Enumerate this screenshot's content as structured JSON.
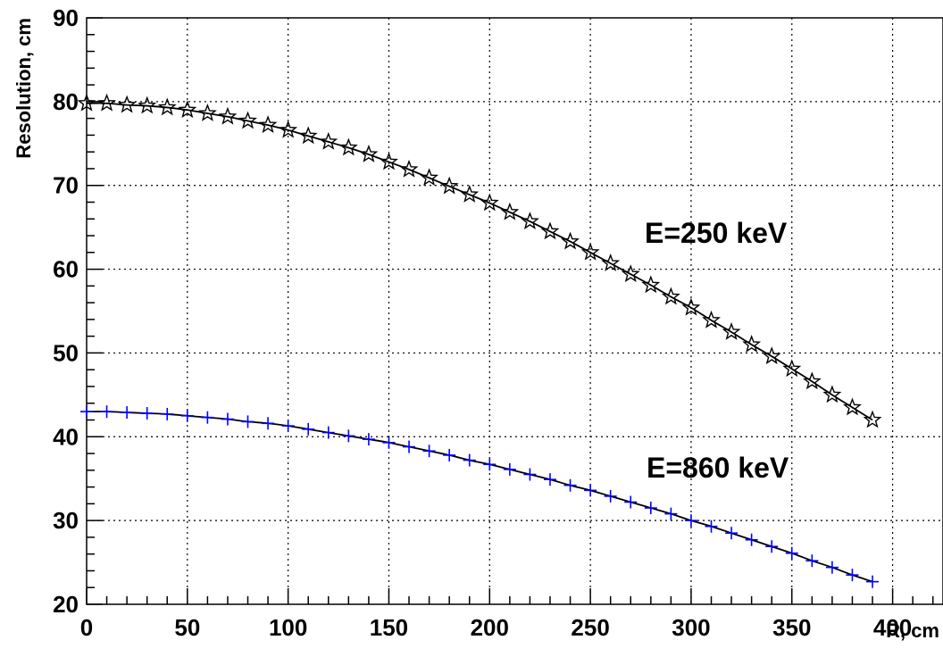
{
  "chart_data": {
    "type": "line",
    "xlabel": "R, cm",
    "ylabel": "Resolution, cm",
    "xlim": [
      0,
      425
    ],
    "ylim": [
      20,
      90
    ],
    "xticks": [
      0,
      50,
      100,
      150,
      200,
      250,
      300,
      350,
      400
    ],
    "yticks": [
      20,
      30,
      40,
      50,
      60,
      70,
      80,
      90
    ],
    "grid": true,
    "series": [
      {
        "name": "E=250 keV",
        "marker": "star",
        "color": "#000000",
        "x": [
          0,
          10,
          20,
          30,
          40,
          50,
          60,
          70,
          80,
          90,
          100,
          110,
          120,
          130,
          140,
          150,
          160,
          170,
          180,
          190,
          200,
          210,
          220,
          230,
          240,
          250,
          260,
          270,
          280,
          290,
          300,
          310,
          320,
          330,
          340,
          350,
          360,
          370,
          380,
          390
        ],
        "y": [
          79.8,
          79.8,
          79.6,
          79.5,
          79.3,
          79.0,
          78.6,
          78.2,
          77.7,
          77.2,
          76.6,
          75.9,
          75.2,
          74.5,
          73.7,
          72.8,
          71.9,
          70.9,
          69.9,
          68.9,
          67.9,
          66.8,
          65.7,
          64.5,
          63.3,
          62.0,
          60.7,
          59.4,
          58.1,
          56.7,
          55.4,
          53.9,
          52.5,
          51.0,
          49.6,
          48.1,
          46.6,
          45.0,
          43.5,
          42.0
        ]
      },
      {
        "name": "E=860 keV",
        "marker": "plus",
        "color": "#0000ff",
        "x": [
          0,
          10,
          20,
          30,
          40,
          50,
          60,
          70,
          80,
          90,
          100,
          110,
          120,
          130,
          140,
          150,
          160,
          170,
          180,
          190,
          200,
          210,
          220,
          230,
          240,
          250,
          260,
          270,
          280,
          290,
          300,
          310,
          320,
          330,
          340,
          350,
          360,
          370,
          380,
          390
        ],
        "y": [
          43.0,
          43.0,
          42.9,
          42.8,
          42.7,
          42.5,
          42.3,
          42.1,
          41.8,
          41.6,
          41.3,
          40.9,
          40.5,
          40.1,
          39.7,
          39.3,
          38.8,
          38.3,
          37.8,
          37.2,
          36.7,
          36.1,
          35.5,
          34.9,
          34.2,
          33.6,
          32.9,
          32.2,
          31.5,
          30.8,
          30.0,
          29.3,
          28.5,
          27.7,
          26.9,
          26.1,
          25.2,
          24.4,
          23.5,
          22.7
        ]
      }
    ],
    "annotations": [
      "E=250 keV",
      "E=860 keV"
    ]
  }
}
